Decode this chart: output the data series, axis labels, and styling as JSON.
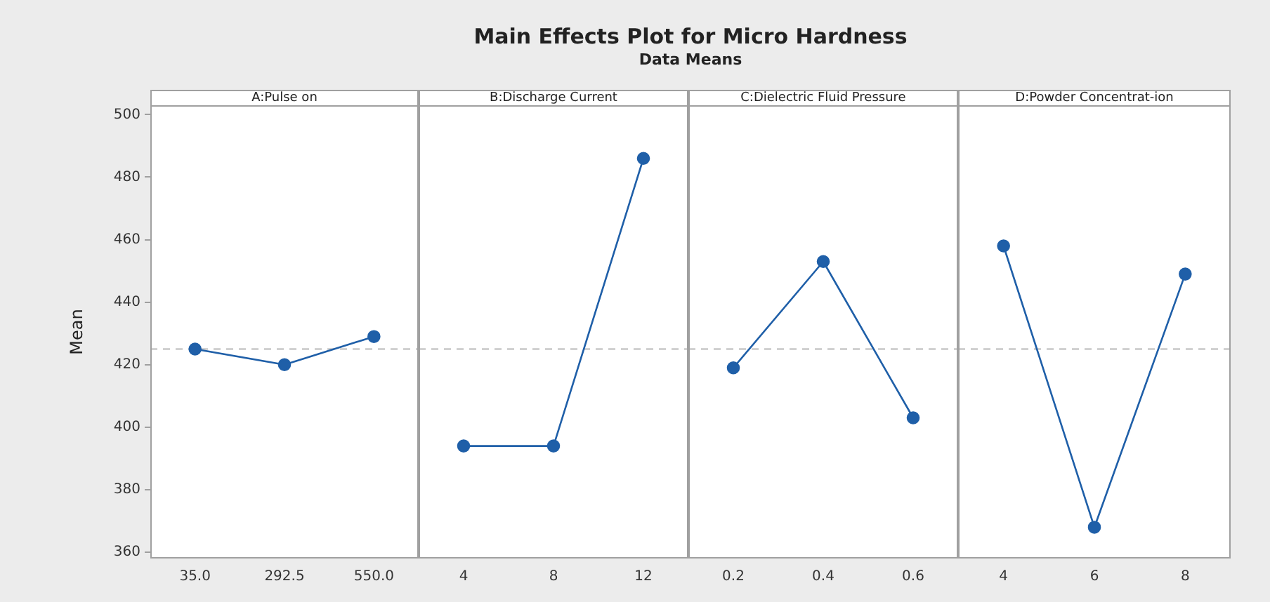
{
  "chart_data": [
    {
      "type": "other",
      "title": "Main Effects Plot for Micro Hardness",
      "subtitle": "Data Means"
    },
    {
      "type": "line",
      "title": "A:Pulse on",
      "ylabel": "Mean",
      "categories": [
        "35.0",
        "292.5",
        "550.0"
      ],
      "series": [
        {
          "color": "#1f5fa8",
          "values": [
            425,
            420,
            429
          ]
        }
      ],
      "ylim": [
        358,
        503
      ],
      "yticks": [
        360,
        380,
        400,
        420,
        440,
        460,
        480,
        500
      ],
      "marker": "circle",
      "grid": false,
      "ref_lines": [
        {
          "axis": "y",
          "value": 425,
          "color": "#c8c8c8",
          "line_style": "dashed"
        }
      ]
    },
    {
      "type": "line",
      "title": "B:Discharge Current",
      "categories": [
        "4",
        "8",
        "12"
      ],
      "series": [
        {
          "color": "#1f5fa8",
          "values": [
            394,
            394,
            486
          ]
        }
      ],
      "ylim": [
        358,
        503
      ],
      "yticks": [
        360,
        380,
        400,
        420,
        440,
        460,
        480,
        500
      ],
      "tick_labels": "x",
      "marker": "circle",
      "grid": false,
      "ref_lines": [
        {
          "axis": "y",
          "value": 425,
          "color": "#c8c8c8",
          "line_style": "dashed"
        }
      ]
    },
    {
      "type": "line",
      "title": "C:Dielectric Fluid Pressure",
      "categories": [
        "0.2",
        "0.4",
        "0.6"
      ],
      "series": [
        {
          "color": "#1f5fa8",
          "values": [
            419,
            453,
            403
          ]
        }
      ],
      "ylim": [
        358,
        503
      ],
      "yticks": [
        360,
        380,
        400,
        420,
        440,
        460,
        480,
        500
      ],
      "tick_labels": "x",
      "marker": "circle",
      "grid": false,
      "ref_lines": [
        {
          "axis": "y",
          "value": 425,
          "color": "#c8c8c8",
          "line_style": "dashed"
        }
      ]
    },
    {
      "type": "line",
      "title": "D:Powder Concentrat-ion",
      "categories": [
        "4",
        "6",
        "8"
      ],
      "series": [
        {
          "color": "#1f5fa8",
          "values": [
            458,
            368,
            449
          ]
        }
      ],
      "ylim": [
        358,
        503
      ],
      "yticks": [
        360,
        380,
        400,
        420,
        440,
        460,
        480,
        500
      ],
      "tick_labels": "x",
      "marker": "circle",
      "grid": false,
      "ref_lines": [
        {
          "axis": "y",
          "value": 425,
          "color": "#c8c8c8",
          "line_style": "dashed"
        }
      ]
    }
  ]
}
